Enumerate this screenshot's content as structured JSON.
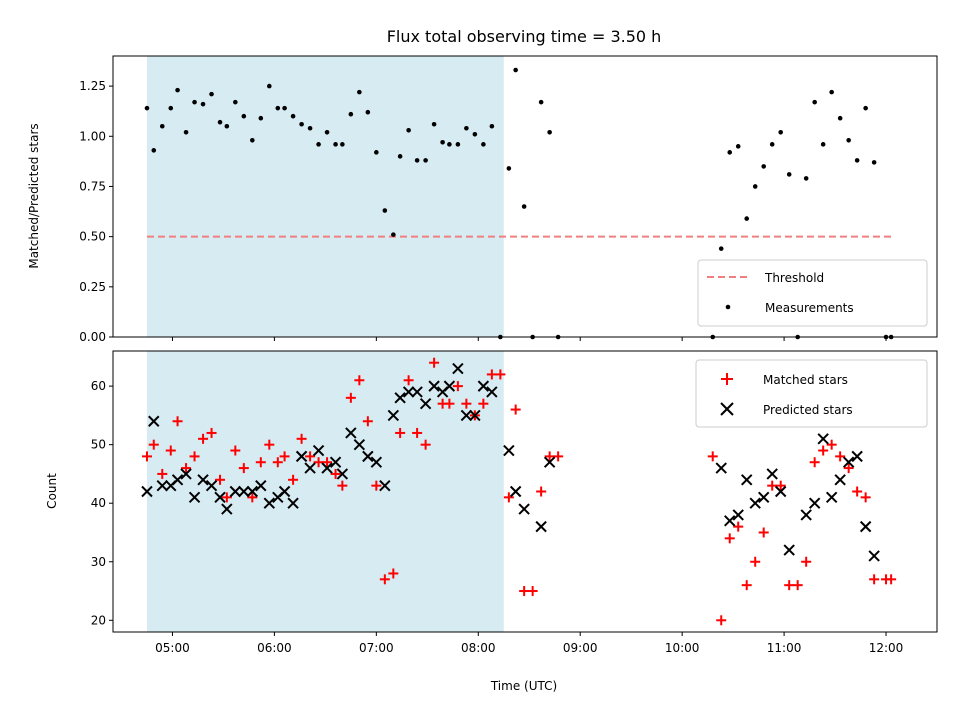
{
  "title": "Flux total observing time = 3.50 h",
  "colors": {
    "shade": "#add8e6",
    "threshold": "#f08080",
    "measurement": "#000000",
    "matched": "#ff0000",
    "predicted": "#000000"
  },
  "chart_data": [
    {
      "type": "scatter",
      "id": "ratio",
      "ylabel": "Matched/Predicted stars",
      "ylim": [
        0,
        1.4
      ],
      "yticks": [
        0.0,
        0.25,
        0.5,
        0.75,
        1.0,
        1.25
      ],
      "ytick_labels": [
        "0.00",
        "0.25",
        "0.50",
        "0.75",
        "1.00",
        "1.25"
      ],
      "xlim": [
        "04:25",
        "12:30"
      ],
      "shaded_span": [
        "04:45",
        "08:15"
      ],
      "threshold": {
        "name": "Threshold",
        "value": 0.5,
        "x_range": [
          "04:45",
          "12:05"
        ],
        "style": "dashed"
      },
      "legend": {
        "placement": "lower-right",
        "entries": [
          "Threshold",
          "Measurements"
        ]
      },
      "series": [
        {
          "name": "Measurements",
          "marker": "dot",
          "points": [
            [
              "04:45",
              1.14
            ],
            [
              "04:49",
              0.93
            ],
            [
              "04:54",
              1.05
            ],
            [
              "04:59",
              1.14
            ],
            [
              "05:03",
              1.23
            ],
            [
              "05:08",
              1.02
            ],
            [
              "05:13",
              1.17
            ],
            [
              "05:18",
              1.16
            ],
            [
              "05:23",
              1.21
            ],
            [
              "05:28",
              1.07
            ],
            [
              "05:32",
              1.05
            ],
            [
              "05:37",
              1.17
            ],
            [
              "05:42",
              1.1
            ],
            [
              "05:47",
              0.98
            ],
            [
              "05:52",
              1.09
            ],
            [
              "05:57",
              1.25
            ],
            [
              "06:02",
              1.14
            ],
            [
              "06:06",
              1.14
            ],
            [
              "06:11",
              1.1
            ],
            [
              "06:16",
              1.06
            ],
            [
              "06:21",
              1.04
            ],
            [
              "06:26",
              0.96
            ],
            [
              "06:31",
              1.02
            ],
            [
              "06:36",
              0.96
            ],
            [
              "06:40",
              0.96
            ],
            [
              "06:45",
              1.11
            ],
            [
              "06:50",
              1.22
            ],
            [
              "06:55",
              1.12
            ],
            [
              "07:00",
              0.92
            ],
            [
              "07:05",
              0.63
            ],
            [
              "07:10",
              0.51
            ],
            [
              "07:14",
              0.9
            ],
            [
              "07:19",
              1.03
            ],
            [
              "07:24",
              0.88
            ],
            [
              "07:29",
              0.88
            ],
            [
              "07:34",
              1.06
            ],
            [
              "07:39",
              0.97
            ],
            [
              "07:43",
              0.96
            ],
            [
              "07:48",
              0.96
            ],
            [
              "07:53",
              1.04
            ],
            [
              "07:58",
              1.01
            ],
            [
              "08:03",
              0.96
            ],
            [
              "08:08",
              1.05
            ],
            [
              "08:13",
              0.0
            ],
            [
              "08:18",
              0.84
            ],
            [
              "08:22",
              1.33
            ],
            [
              "08:27",
              0.65
            ],
            [
              "08:32",
              0.0
            ],
            [
              "08:37",
              1.17
            ],
            [
              "08:42",
              1.02
            ],
            [
              "08:47",
              0.0
            ],
            [
              "10:18",
              0.0
            ],
            [
              "10:23",
              0.44
            ],
            [
              "10:28",
              0.92
            ],
            [
              "10:33",
              0.95
            ],
            [
              "10:38",
              0.59
            ],
            [
              "10:43",
              0.75
            ],
            [
              "10:48",
              0.85
            ],
            [
              "10:53",
              0.96
            ],
            [
              "10:58",
              1.02
            ],
            [
              "11:03",
              0.81
            ],
            [
              "11:08",
              0.0
            ],
            [
              "11:13",
              0.79
            ],
            [
              "11:18",
              1.17
            ],
            [
              "11:23",
              0.96
            ],
            [
              "11:28",
              1.22
            ],
            [
              "11:33",
              1.09
            ],
            [
              "11:38",
              0.98
            ],
            [
              "11:43",
              0.88
            ],
            [
              "11:48",
              1.14
            ],
            [
              "11:53",
              0.87
            ],
            [
              "12:00",
              0.0
            ],
            [
              "12:03",
              0.0
            ]
          ]
        }
      ]
    },
    {
      "type": "scatter",
      "id": "counts",
      "ylabel": "Count",
      "xlabel": "Time (UTC)",
      "ylim": [
        18,
        66
      ],
      "yticks": [
        20,
        30,
        40,
        50,
        60
      ],
      "ytick_labels": [
        "20",
        "30",
        "40",
        "50",
        "60"
      ],
      "xlim": [
        "04:25",
        "12:30"
      ],
      "xticks": [
        "05:00",
        "06:00",
        "07:00",
        "08:00",
        "09:00",
        "10:00",
        "11:00",
        "12:00"
      ],
      "shaded_span": [
        "04:45",
        "08:15"
      ],
      "legend": {
        "placement": "upper-right",
        "entries": [
          "Matched stars",
          "Predicted stars"
        ]
      },
      "series": [
        {
          "name": "Matched stars",
          "marker": "plus",
          "points": [
            [
              "04:45",
              48
            ],
            [
              "04:49",
              50
            ],
            [
              "04:54",
              45
            ],
            [
              "04:59",
              49
            ],
            [
              "05:03",
              54
            ],
            [
              "05:08",
              46
            ],
            [
              "05:13",
              48
            ],
            [
              "05:18",
              51
            ],
            [
              "05:23",
              52
            ],
            [
              "05:28",
              44
            ],
            [
              "05:32",
              41
            ],
            [
              "05:37",
              49
            ],
            [
              "05:42",
              46
            ],
            [
              "05:47",
              41
            ],
            [
              "05:52",
              47
            ],
            [
              "05:57",
              50
            ],
            [
              "06:02",
              47
            ],
            [
              "06:06",
              48
            ],
            [
              "06:11",
              44
            ],
            [
              "06:16",
              51
            ],
            [
              "06:21",
              48
            ],
            [
              "06:26",
              47
            ],
            [
              "06:31",
              47
            ],
            [
              "06:36",
              45
            ],
            [
              "06:40",
              43
            ],
            [
              "06:45",
              58
            ],
            [
              "06:50",
              61
            ],
            [
              "06:55",
              54
            ],
            [
              "07:00",
              43
            ],
            [
              "07:05",
              27
            ],
            [
              "07:10",
              28
            ],
            [
              "07:14",
              52
            ],
            [
              "07:19",
              61
            ],
            [
              "07:24",
              52
            ],
            [
              "07:29",
              50
            ],
            [
              "07:34",
              64
            ],
            [
              "07:39",
              57
            ],
            [
              "07:43",
              57
            ],
            [
              "07:48",
              60
            ],
            [
              "07:53",
              57
            ],
            [
              "07:58",
              55
            ],
            [
              "08:03",
              57
            ],
            [
              "08:08",
              62
            ],
            [
              "08:13",
              62
            ],
            [
              "08:18",
              41
            ],
            [
              "08:22",
              56
            ],
            [
              "08:27",
              25
            ],
            [
              "08:32",
              25
            ],
            [
              "08:37",
              42
            ],
            [
              "08:42",
              48
            ],
            [
              "08:47",
              48
            ],
            [
              "10:18",
              48
            ],
            [
              "10:23",
              20
            ],
            [
              "10:28",
              34
            ],
            [
              "10:33",
              36
            ],
            [
              "10:38",
              26
            ],
            [
              "10:43",
              30
            ],
            [
              "10:48",
              35
            ],
            [
              "10:53",
              43
            ],
            [
              "10:58",
              43
            ],
            [
              "11:03",
              26
            ],
            [
              "11:08",
              26
            ],
            [
              "11:13",
              30
            ],
            [
              "11:18",
              47
            ],
            [
              "11:23",
              49
            ],
            [
              "11:28",
              50
            ],
            [
              "11:33",
              48
            ],
            [
              "11:38",
              46
            ],
            [
              "11:43",
              42
            ],
            [
              "11:48",
              41
            ],
            [
              "11:53",
              27
            ],
            [
              "12:00",
              27
            ],
            [
              "12:03",
              27
            ]
          ]
        },
        {
          "name": "Predicted stars",
          "marker": "x",
          "points": [
            [
              "04:45",
              42
            ],
            [
              "04:49",
              54
            ],
            [
              "04:54",
              43
            ],
            [
              "04:59",
              43
            ],
            [
              "05:03",
              44
            ],
            [
              "05:08",
              45
            ],
            [
              "05:13",
              41
            ],
            [
              "05:18",
              44
            ],
            [
              "05:23",
              43
            ],
            [
              "05:28",
              41
            ],
            [
              "05:32",
              39
            ],
            [
              "05:37",
              42
            ],
            [
              "05:42",
              42
            ],
            [
              "05:47",
              42
            ],
            [
              "05:52",
              43
            ],
            [
              "05:57",
              40
            ],
            [
              "06:02",
              41
            ],
            [
              "06:06",
              42
            ],
            [
              "06:11",
              40
            ],
            [
              "06:16",
              48
            ],
            [
              "06:21",
              46
            ],
            [
              "06:26",
              49
            ],
            [
              "06:31",
              46
            ],
            [
              "06:36",
              47
            ],
            [
              "06:40",
              45
            ],
            [
              "06:45",
              52
            ],
            [
              "06:50",
              50
            ],
            [
              "06:55",
              48
            ],
            [
              "07:00",
              47
            ],
            [
              "07:05",
              43
            ],
            [
              "07:10",
              55
            ],
            [
              "07:14",
              58
            ],
            [
              "07:19",
              59
            ],
            [
              "07:24",
              59
            ],
            [
              "07:29",
              57
            ],
            [
              "07:34",
              60
            ],
            [
              "07:39",
              59
            ],
            [
              "07:43",
              60
            ],
            [
              "07:48",
              63
            ],
            [
              "07:53",
              55
            ],
            [
              "07:58",
              55
            ],
            [
              "08:03",
              60
            ],
            [
              "08:08",
              59
            ],
            [
              "08:18",
              49
            ],
            [
              "08:22",
              42
            ],
            [
              "08:27",
              39
            ],
            [
              "08:37",
              36
            ],
            [
              "08:42",
              47
            ],
            [
              "10:23",
              46
            ],
            [
              "10:28",
              37
            ],
            [
              "10:33",
              38
            ],
            [
              "10:38",
              44
            ],
            [
              "10:43",
              40
            ],
            [
              "10:48",
              41
            ],
            [
              "10:53",
              45
            ],
            [
              "10:58",
              42
            ],
            [
              "11:03",
              32
            ],
            [
              "11:13",
              38
            ],
            [
              "11:18",
              40
            ],
            [
              "11:23",
              51
            ],
            [
              "11:28",
              41
            ],
            [
              "11:33",
              44
            ],
            [
              "11:38",
              47
            ],
            [
              "11:43",
              48
            ],
            [
              "11:48",
              36
            ],
            [
              "11:53",
              31
            ]
          ]
        }
      ]
    }
  ]
}
